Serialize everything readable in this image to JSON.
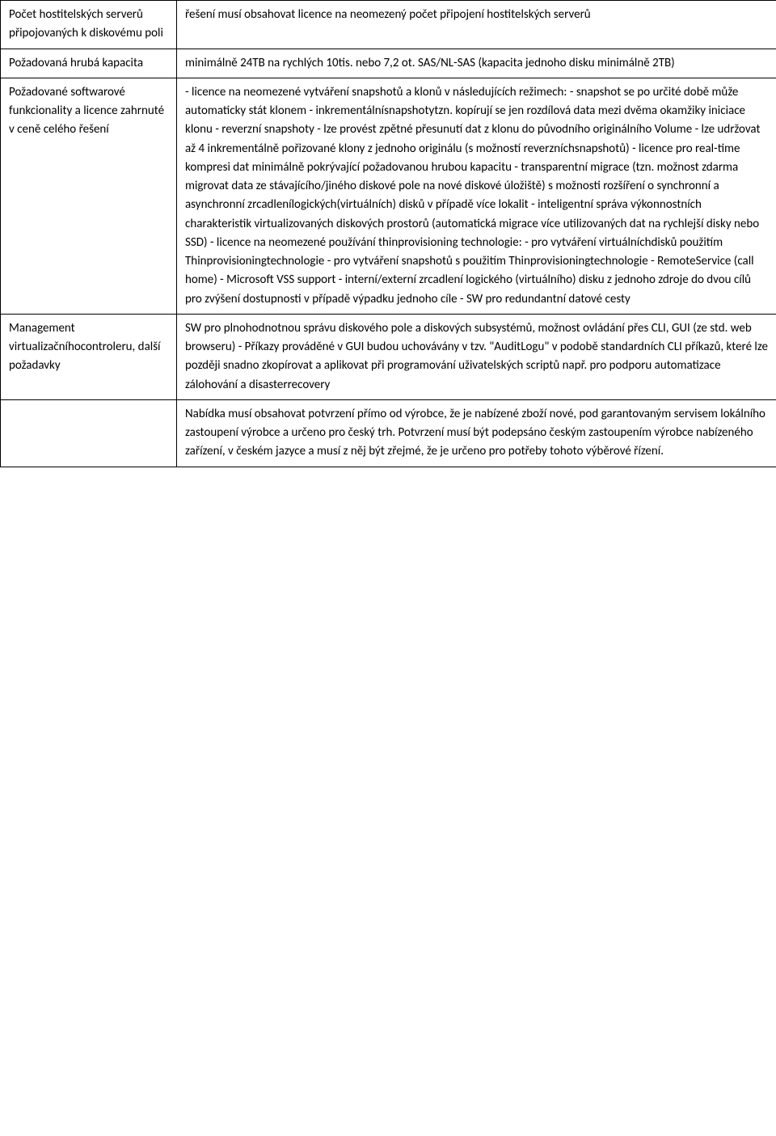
{
  "rows": [
    {
      "left": "Počet hostitelských serverů připojovaných k diskovému poli",
      "right": "řešení musí obsahovat licence na neomezený počet připojení hostitelských serverů"
    },
    {
      "left": "Požadovaná hrubá kapacita",
      "right": "minimálně 24TB na rychlých 10tis. nebo 7,2 ot. SAS/NL-SAS (kapacita jednoho disku minimálně 2TB)"
    },
    {
      "left": "Požadované softwarové funkcionality a licence zahrnuté v ceně celého řešení",
      "right": "- licence na neomezené vytváření snapshotů a klonů v následujících režimech:\n- snapshot se po určité době může automaticky stát klonem\n- inkrementálnísnapshotytzn. kopírují se jen rozdílová data mezi dvěma okamžiky iniciace klonu\n- reverzní snapshoty - lze provést zpětné přesunutí dat z klonu do původního originálního Volume\n- lze udržovat až 4 inkrementálně pořizované klony z jednoho originálu (s možností reverzníchsnapshotů)\n- licence pro real-time kompresi dat minimálně pokrývající požadovanou hrubou kapacitu\n- transparentní migrace (tzn. možnost zdarma migrovat data ze stávajícího/jiného diskové pole na nové diskové úložiště) s možnosti rozšíření o synchronní a asynchronní zrcadlenílogických(virtuálních) disků v případě více lokalit\n- inteligentní správa výkonnostních charakteristik virtualizovaných diskových prostorů (automatická migrace více utilizovaných dat na rychlejší disky nebo SSD)\n- licence na neomezené používání thinprovisioning technologie:\n- pro vytváření virtuálníchdisků použitím Thinprovisioningtechnologie\n- pro vytváření snapshotů s použitím Thinprovisioningtechnologie\n- RemoteService (call home)\n- Microsoft VSS support\n- interní/externí zrcadlení logického (virtuálního) disku z jednoho zdroje do dvou cílů pro zvýšení dostupnosti v případě výpadku jednoho cíle\n- SW pro redundantní datové cesty"
    },
    {
      "left": "Management virtualizačníhocontroleru, další požadavky",
      "right": "SW pro plnohodnotnou správu diskového pole a diskových subsystémů, možnost ovládání přes CLI, GUI (ze std. web browseru)\n- Příkazy prováděné v GUI budou uchovávány v tzv. \"AuditLogu\" v podobě standardních CLI příkazů, které lze později snadno zkopírovat a aplikovat při programování uživatelských scriptů např. pro podporu automatizace zálohování a disasterrecovery"
    },
    {
      "left": "",
      "right": "Nabídka musí obsahovat potvrzení přímo od výrobce, že je nabízené zboží nové, pod garantovaným servisem lokálního zastoupení výrobce a určeno pro český trh. Potvrzení musí být podepsáno českým zastoupením výrobce nabízeného zařízení, v českém jazyce a musí z něj být zřejmé, že je určeno pro potřeby tohoto výběrové řízení."
    }
  ]
}
